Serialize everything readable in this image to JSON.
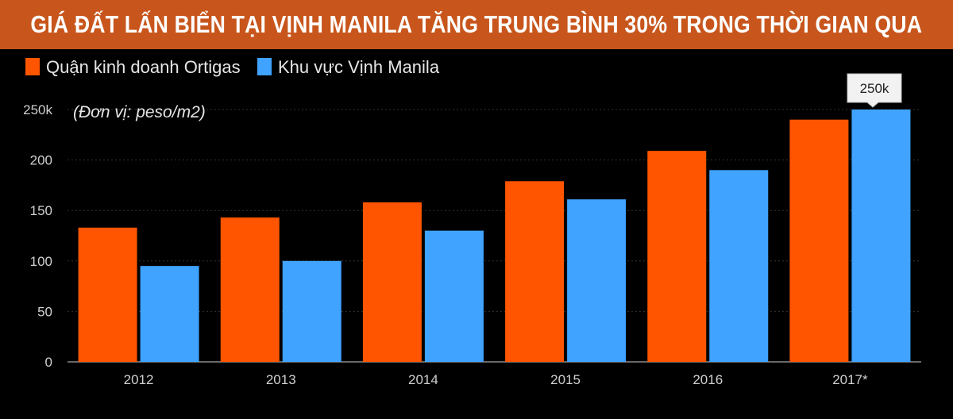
{
  "title": "GIÁ ĐẤT LẤN BIỂN TẠI VỊNH MANILA TĂNG TRUNG BÌNH 30% TRONG THỜI GIAN QUA",
  "colors": {
    "title_bar": "#c8561c",
    "background": "#000000",
    "series_1": "#ff5500",
    "series_2": "#3fa3ff"
  },
  "chart_data": {
    "type": "bar",
    "unit_label": "(Đơn vị: peso/m2)",
    "categories": [
      "2012",
      "2013",
      "2014",
      "2015",
      "2016",
      "2017*"
    ],
    "series": [
      {
        "name": "Quận kinh doanh Ortigas",
        "values": [
          133,
          143,
          158,
          179,
          209,
          240
        ]
      },
      {
        "name": "Khu vực Vịnh Manila",
        "values": [
          95,
          100,
          130,
          161,
          190,
          250
        ]
      }
    ],
    "y_ticks": [
      "0",
      "50",
      "100",
      "150",
      "200",
      "250k"
    ],
    "ylim": [
      0,
      250
    ],
    "grid": true,
    "legend": "top-left",
    "tooltip": "250k"
  }
}
